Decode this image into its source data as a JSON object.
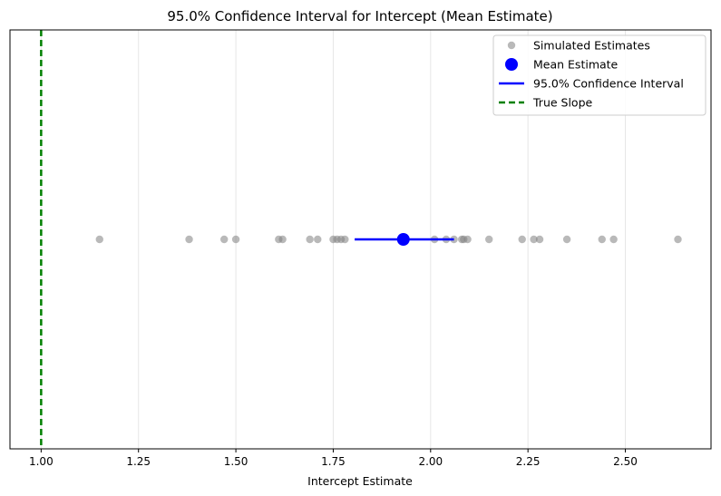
{
  "chart_data": {
    "type": "scatter",
    "title": "95.0% Confidence Interval for Intercept (Mean Estimate)",
    "xlabel": "Intercept Estimate",
    "ylabel": "",
    "xlim": [
      0.92,
      2.72
    ],
    "ylim": [
      -1,
      1
    ],
    "x_ticks": [
      "1.00",
      "1.25",
      "1.50",
      "1.75",
      "2.00",
      "2.25",
      "2.50"
    ],
    "y_ticks": [],
    "grid": "x-axis vertical lines",
    "legend_position": "top-right",
    "series": [
      {
        "name": "Simulated Estimates",
        "kind": "scatter",
        "color": "#808080",
        "x": [
          1.15,
          1.38,
          1.47,
          1.5,
          1.61,
          1.62,
          1.69,
          1.71,
          1.75,
          1.76,
          1.77,
          1.78,
          2.01,
          2.04,
          2.06,
          2.08,
          2.085,
          2.095,
          2.15,
          2.235,
          2.265,
          2.28,
          2.35,
          2.44,
          2.47,
          2.635
        ],
        "y": [
          0,
          0,
          0,
          0,
          0,
          0,
          0,
          0,
          0,
          0,
          0,
          0,
          0,
          0,
          0,
          0,
          0,
          0,
          0,
          0,
          0,
          0,
          0,
          0,
          0,
          0
        ]
      },
      {
        "name": "Mean Estimate",
        "kind": "point",
        "color": "#0000ff",
        "x": [
          1.93
        ],
        "y": [
          0
        ]
      },
      {
        "name": "95.0% Confidence Interval",
        "kind": "interval",
        "color": "#0000ff",
        "x": [
          1.805,
          2.06
        ],
        "y": [
          0,
          0
        ]
      },
      {
        "name": "True Slope",
        "kind": "vline",
        "color": "#008000",
        "x": [
          1.0
        ]
      }
    ]
  }
}
